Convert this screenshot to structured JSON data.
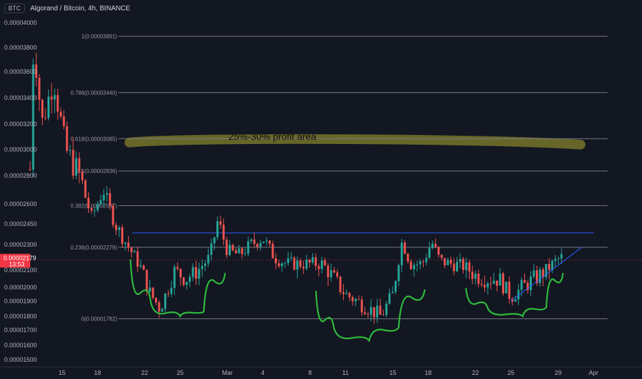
{
  "header": {
    "symbol_badge": "BTC",
    "title": "Algorand / Bitcoin, 4h, BINANCE"
  },
  "colors": {
    "background": "#131722",
    "up": "#26a69a",
    "down": "#ef5350",
    "fib": "#787b86",
    "resistance": "#2962ff",
    "trend": "#2962ff",
    "arc": "#2ebd3b",
    "highlight": "#6b6a2a",
    "price_tag": "#f23645"
  },
  "chart_data": {
    "type": "candlestick",
    "y_ticks": [
      "0.00004000",
      "0.00003800",
      "0.00003600",
      "0.00003400",
      "0.00003200",
      "0.00003000",
      "0.00002800",
      "0.00002600",
      "0.00002450",
      "0.00002300",
      "0.00002100",
      "0.00002000",
      "0.00001900",
      "0.00001800",
      "0.00001700",
      "0.00001600",
      "0.00001500"
    ],
    "x_ticks": [
      {
        "label": "15",
        "day": 15
      },
      {
        "label": "18",
        "day": 18
      },
      {
        "label": "22",
        "day": 22
      },
      {
        "label": "25",
        "day": 25
      },
      {
        "label": "Mar",
        "day": 29
      },
      {
        "label": "4",
        "day": 32
      },
      {
        "label": "8",
        "day": 36
      },
      {
        "label": "11",
        "day": 39
      },
      {
        "label": "15",
        "day": 43
      },
      {
        "label": "18",
        "day": 46
      },
      {
        "label": "22",
        "day": 50
      },
      {
        "label": "25",
        "day": 53
      },
      {
        "label": "29",
        "day": 57
      },
      {
        "label": "Apr",
        "day": 60
      }
    ],
    "fib_levels": [
      {
        "label": "1(0.00003891)",
        "value": 3.891
      },
      {
        "label": "0.786(0.00003440)",
        "value": 3.44
      },
      {
        "label": "0.618(0.00003085)",
        "value": 3.085
      },
      {
        "label": "0.5(0.00002836)",
        "value": 2.836
      },
      {
        "label": "0.382(0.00002587)",
        "value": 2.587
      },
      {
        "label": "0.236(0.00002279)",
        "value": 2.279
      },
      {
        "label": "0(0.00001782)",
        "value": 1.782
      }
    ],
    "resistance_level": 2.385,
    "annotation": "25%-30% profit area",
    "current_price": "0.00002179",
    "countdown": "13:53",
    "current_value": 2.179,
    "key_prices": [
      {
        "day": 12.3,
        "value": 2.85
      },
      {
        "day": 12.6,
        "value": 3.85
      },
      {
        "day": 13.3,
        "value": 3.2
      },
      {
        "day": 14.3,
        "value": 3.55
      },
      {
        "day": 15.3,
        "value": 3.0
      },
      {
        "day": 16.5,
        "value": 2.8
      },
      {
        "day": 17.5,
        "value": 2.5
      },
      {
        "day": 18.5,
        "value": 2.7
      },
      {
        "day": 19.5,
        "value": 2.45
      },
      {
        "day": 20.5,
        "value": 2.3
      },
      {
        "day": 21.5,
        "value": 2.15
      },
      {
        "day": 22.5,
        "value": 1.95
      },
      {
        "day": 23.3,
        "value": 1.85
      },
      {
        "day": 24.5,
        "value": 2.1
      },
      {
        "day": 25.5,
        "value": 2.05
      },
      {
        "day": 26.5,
        "value": 2.1
      },
      {
        "day": 27.5,
        "value": 2.2
      },
      {
        "day": 28.2,
        "value": 2.48
      },
      {
        "day": 29,
        "value": 2.25
      },
      {
        "day": 30,
        "value": 2.22
      },
      {
        "day": 31,
        "value": 2.3
      },
      {
        "day": 32,
        "value": 2.35
      },
      {
        "day": 33,
        "value": 2.2
      },
      {
        "day": 34,
        "value": 2.15
      },
      {
        "day": 35,
        "value": 2.15
      },
      {
        "day": 36,
        "value": 2.15
      },
      {
        "day": 37,
        "value": 2.15
      },
      {
        "day": 38,
        "value": 2.05
      },
      {
        "day": 39,
        "value": 1.95
      },
      {
        "day": 40,
        "value": 1.9
      },
      {
        "day": 41,
        "value": 1.85
      },
      {
        "day": 42,
        "value": 1.8
      },
      {
        "day": 43,
        "value": 1.95
      },
      {
        "day": 43.8,
        "value": 2.33
      },
      {
        "day": 44.5,
        "value": 2.15
      },
      {
        "day": 45.5,
        "value": 2.15
      },
      {
        "day": 46.3,
        "value": 2.32
      },
      {
        "day": 47,
        "value": 2.17
      },
      {
        "day": 48,
        "value": 2.15
      },
      {
        "day": 49,
        "value": 2.13
      },
      {
        "day": 50,
        "value": 2.07
      },
      {
        "day": 51,
        "value": 2.05
      },
      {
        "day": 52,
        "value": 2.05
      },
      {
        "day": 53,
        "value": 1.93
      },
      {
        "day": 54,
        "value": 2.0
      },
      {
        "day": 55,
        "value": 2.05
      },
      {
        "day": 56,
        "value": 2.1
      },
      {
        "day": 56.8,
        "value": 2.17
      },
      {
        "day": 57.3,
        "value": 2.2
      }
    ],
    "trendline": [
      {
        "day": 53,
        "value": 1.9
      },
      {
        "day": 59,
        "value": 2.28
      }
    ],
    "arcs": [
      [
        {
          "day": 20.8,
          "value": 2.18
        },
        {
          "day": 22.5,
          "value": 1.9
        },
        {
          "day": 25,
          "value": 1.8
        },
        {
          "day": 27,
          "value": 1.83
        },
        {
          "day": 28.8,
          "value": 2.08
        }
      ],
      [
        {
          "day": 36.5,
          "value": 1.97
        },
        {
          "day": 38,
          "value": 1.72
        },
        {
          "day": 41,
          "value": 1.63
        },
        {
          "day": 43.5,
          "value": 1.72
        },
        {
          "day": 45.7,
          "value": 1.98
        }
      ],
      [
        {
          "day": 49.2,
          "value": 1.99
        },
        {
          "day": 51,
          "value": 1.86
        },
        {
          "day": 54,
          "value": 1.8
        },
        {
          "day": 56,
          "value": 1.86
        },
        {
          "day": 57.4,
          "value": 2.08
        }
      ]
    ],
    "highlight": {
      "day_start": 20.7,
      "day_end": 58.9,
      "value_center": 3.055
    }
  }
}
